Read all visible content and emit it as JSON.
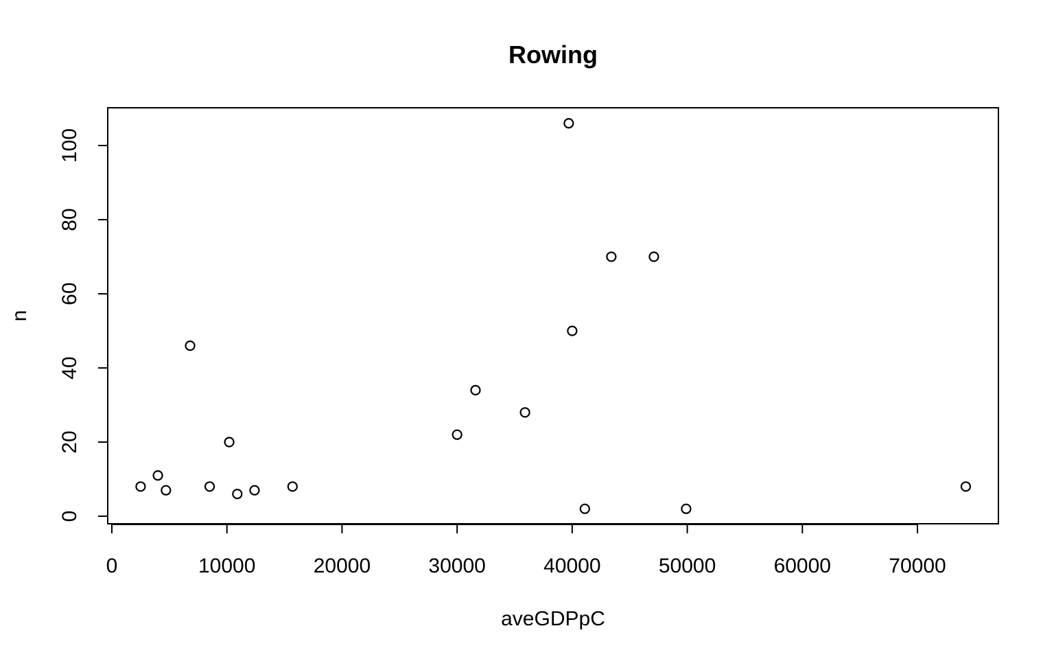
{
  "chart_data": {
    "type": "scatter",
    "title": "Rowing",
    "xlabel": "aveGDPpC",
    "ylabel": "n",
    "xlim": [
      0,
      76000
    ],
    "ylim": [
      -2,
      110
    ],
    "x_ticks": [
      0,
      10000,
      20000,
      30000,
      40000,
      50000,
      60000,
      70000
    ],
    "y_ticks": [
      0,
      20,
      40,
      60,
      80,
      100
    ],
    "x_tick_labels": [
      "0",
      "10000",
      "20000",
      "30000",
      "40000",
      "50000",
      "60000",
      "70000"
    ],
    "y_tick_labels": [
      "0",
      "20",
      "40",
      "60",
      "80",
      "100"
    ],
    "grid": false,
    "marker": "open-circle",
    "series": [
      {
        "points": [
          {
            "x": 2500,
            "y": 8
          },
          {
            "x": 4000,
            "y": 11
          },
          {
            "x": 4700,
            "y": 7
          },
          {
            "x": 6800,
            "y": 46
          },
          {
            "x": 8500,
            "y": 8
          },
          {
            "x": 10200,
            "y": 20
          },
          {
            "x": 10900,
            "y": 6
          },
          {
            "x": 12400,
            "y": 7
          },
          {
            "x": 15700,
            "y": 8
          },
          {
            "x": 30000,
            "y": 22
          },
          {
            "x": 31600,
            "y": 34
          },
          {
            "x": 35900,
            "y": 28
          },
          {
            "x": 39700,
            "y": 106
          },
          {
            "x": 40000,
            "y": 50
          },
          {
            "x": 41100,
            "y": 2
          },
          {
            "x": 43400,
            "y": 70
          },
          {
            "x": 47100,
            "y": 70
          },
          {
            "x": 49900,
            "y": 2
          },
          {
            "x": 74200,
            "y": 8
          }
        ]
      }
    ]
  }
}
